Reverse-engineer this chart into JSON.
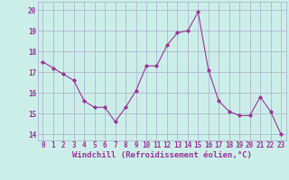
{
  "x": [
    0,
    1,
    2,
    3,
    4,
    5,
    6,
    7,
    8,
    9,
    10,
    11,
    12,
    13,
    14,
    15,
    16,
    17,
    18,
    19,
    20,
    21,
    22,
    23
  ],
  "y": [
    17.5,
    17.2,
    16.9,
    16.6,
    15.6,
    15.3,
    15.3,
    14.6,
    15.3,
    16.1,
    17.3,
    17.3,
    18.3,
    18.9,
    19.0,
    19.9,
    17.1,
    15.6,
    15.1,
    14.9,
    14.9,
    15.8,
    15.1,
    14.0
  ],
  "line_color": "#993399",
  "marker": "D",
  "marker_size": 2.2,
  "bg_color": "#cceee8",
  "grid_color": "#aaaacc",
  "xlabel": "Windchill (Refroidissement éolien,°C)",
  "ylabel_ticks": [
    14,
    15,
    16,
    17,
    18,
    19,
    20
  ],
  "xlabel_ticks": [
    0,
    1,
    2,
    3,
    4,
    5,
    6,
    7,
    8,
    9,
    10,
    11,
    12,
    13,
    14,
    15,
    16,
    17,
    18,
    19,
    20,
    21,
    22,
    23
  ],
  "ylim": [
    13.7,
    20.4
  ],
  "xlim": [
    -0.5,
    23.5
  ],
  "label_fontsize": 6.5,
  "tick_fontsize": 5.5
}
